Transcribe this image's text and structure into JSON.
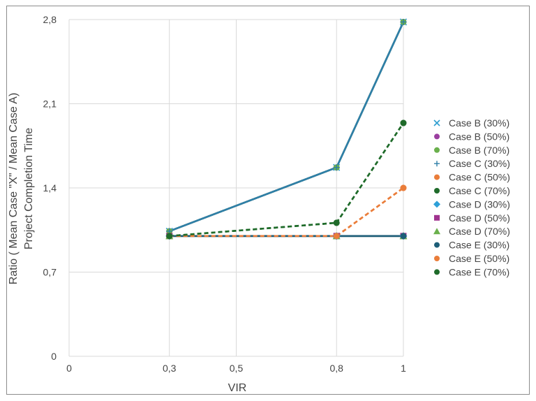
{
  "chart_data": {
    "type": "line",
    "xlabel": "VIR",
    "ylabel_lines": [
      "Ratio (  Mean Case \"X\" /  Mean Case A)",
      "Project Completion Time"
    ],
    "x_ticks": [
      "0",
      "0,3",
      "0,5",
      "0,8",
      "1"
    ],
    "y_ticks": [
      "0",
      "0,7",
      "1,4",
      "2,1",
      "2,8"
    ],
    "xlim": [
      0,
      1
    ],
    "ylim": [
      0,
      2.8
    ],
    "grid": true,
    "legend_position": "right",
    "x": [
      0.3,
      0.8,
      1
    ],
    "series": [
      {
        "name": "Case B (30%)",
        "values": [
          1.04,
          1.57,
          2.78
        ],
        "color": "#2e9ed0",
        "marker": "x",
        "dash": false
      },
      {
        "name": "Case B (50%)",
        "values": [
          1.04,
          1.57,
          2.78
        ],
        "color": "#9b3fa0",
        "marker": "circle",
        "dash": false
      },
      {
        "name": "Case B (70%)",
        "values": [
          1.04,
          1.57,
          2.78
        ],
        "color": "#6ab04c",
        "marker": "circle",
        "dash": false
      },
      {
        "name": "Case C (30%)",
        "values": [
          1.04,
          1.57,
          2.78
        ],
        "color": "#2e7fa8",
        "marker": "plus",
        "dash": false
      },
      {
        "name": "Case C (50%)",
        "values": [
          1.0,
          1.0,
          1.4
        ],
        "color": "#ea7d3a",
        "marker": "circle",
        "dash": true
      },
      {
        "name": "Case C (70%)",
        "values": [
          1.0,
          1.11,
          1.94
        ],
        "color": "#1f6b2a",
        "marker": "circle",
        "dash": true
      },
      {
        "name": "Case D (30%)",
        "values": [
          1.0,
          1.0,
          1.0
        ],
        "color": "#2ea0d8",
        "marker": "diamond",
        "dash": false
      },
      {
        "name": "Case D (50%)",
        "values": [
          1.0,
          1.0,
          1.0
        ],
        "color": "#a0338f",
        "marker": "square",
        "dash": false
      },
      {
        "name": "Case D (70%)",
        "values": [
          1.0,
          1.0,
          1.0
        ],
        "color": "#6ab04c",
        "marker": "triangle",
        "dash": false
      },
      {
        "name": "Case E (30%)",
        "values": [
          1.0,
          1.0,
          1.0
        ],
        "color": "#1d5e78",
        "marker": "circle",
        "dash": false
      },
      {
        "name": "Case E (50%)",
        "values": [
          1.0,
          1.0,
          1.4
        ],
        "color": "#ea7d3a",
        "marker": "circle",
        "dash": true
      },
      {
        "name": "Case E (70%)",
        "values": [
          1.0,
          1.11,
          1.94
        ],
        "color": "#1f6b2a",
        "marker": "circle",
        "dash": true
      }
    ]
  }
}
